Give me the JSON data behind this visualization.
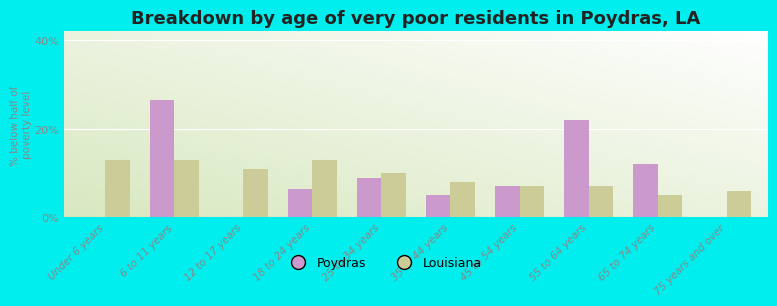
{
  "title": "Breakdown by age of very poor residents in Poydras, LA",
  "ylabel": "% below half of\npoverty level",
  "categories": [
    "Under 6 years",
    "6 to 11 years",
    "12 to 17 years",
    "18 to 24 years",
    "25 to 34 years",
    "35 to 44 years",
    "45 to 54 years",
    "55 to 64 years",
    "65 to 74 years",
    "75 years and over"
  ],
  "poydras_values": [
    0,
    26.5,
    0,
    6.5,
    9.0,
    5.0,
    7.0,
    22.0,
    12.0,
    0
  ],
  "louisiana_values": [
    13.0,
    13.0,
    11.0,
    13.0,
    10.0,
    8.0,
    7.0,
    7.0,
    5.0,
    6.0
  ],
  "poydras_color": "#cc99cc",
  "louisiana_color": "#cccc99",
  "background_color_top": "#f8f8f0",
  "background_color_bottom": "#d8e8c0",
  "outer_background": "#00eeee",
  "ylim": [
    0,
    42
  ],
  "yticks": [
    0,
    20,
    40
  ],
  "ytick_labels": [
    "0%",
    "20%",
    "40%"
  ],
  "title_fontsize": 13,
  "legend_labels": [
    "Poydras",
    "Louisiana"
  ],
  "bar_width": 0.35
}
